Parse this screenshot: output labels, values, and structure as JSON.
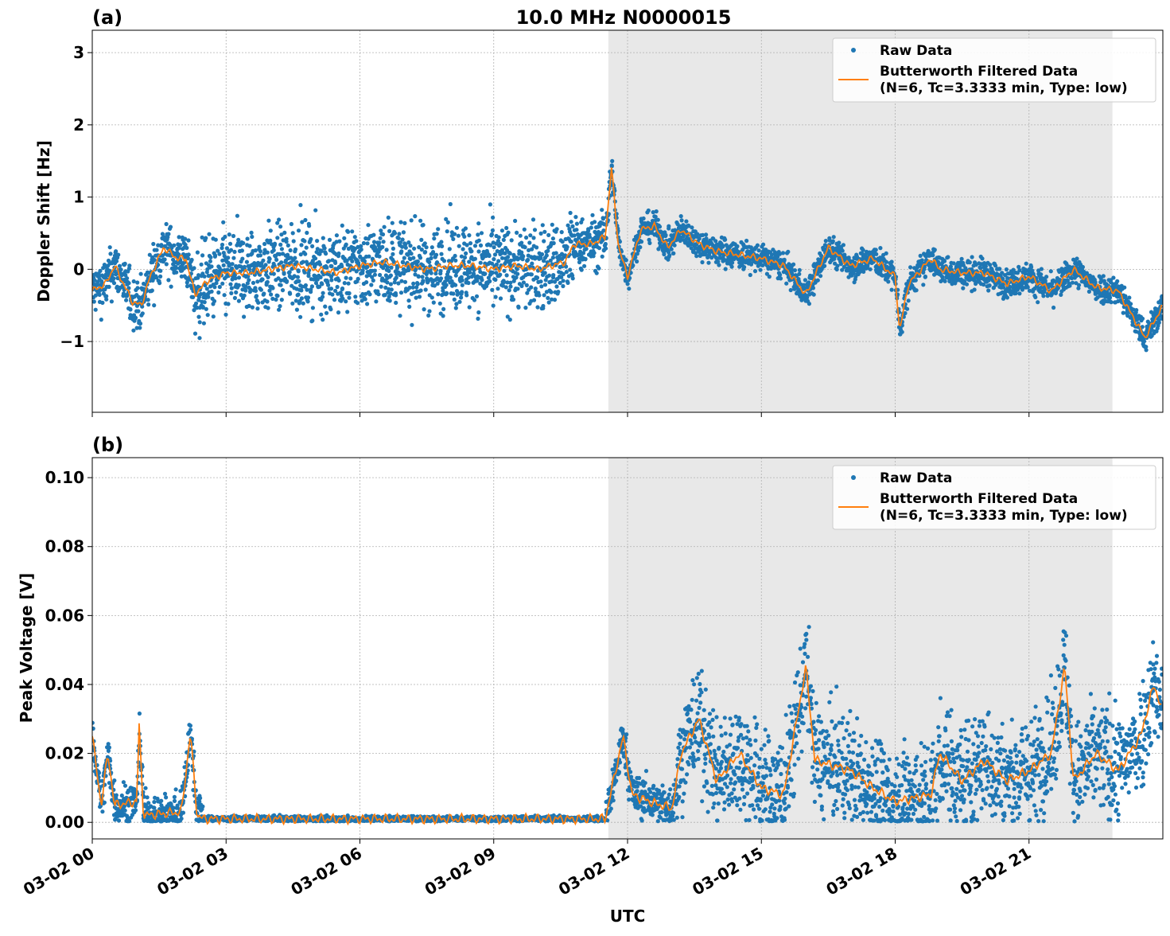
{
  "title": "10.0 MHz N0000015",
  "xlabel": "UTC",
  "x_tick_labels": [
    "03-02 00",
    "03-02 03",
    "03-02 06",
    "03-02 09",
    "03-02 12",
    "03-02 15",
    "03-02 18",
    "03-02 21"
  ],
  "colors": {
    "raw": "#1f77b4",
    "filtered": "#ff7f0e",
    "shade": "#e8e8e8",
    "grid": "#b0b0b0"
  },
  "shaded_interval_hours": [
    11.57,
    22.87
  ],
  "legend": {
    "raw": "Raw Data",
    "filtered_line1": "Butterworth Filtered Data",
    "filtered_line2": "(N=6, Tc=3.3333 min, Type: low)",
    "placement": "upper right"
  },
  "chart_data": [
    {
      "panel_label": "(a)",
      "type": "scatter+line",
      "ylabel": "Doppler Shift [Hz]",
      "xlim_hours": [
        0,
        24
      ],
      "ylim": [
        -1.98,
        3.31
      ],
      "y_ticks": [
        -1,
        0,
        1,
        2,
        3
      ],
      "y_tick_labels": [
        "−1",
        "0",
        "1",
        "2",
        "3"
      ],
      "grid": true,
      "series": [
        {
          "name": "Butterworth Filtered Data",
          "kind": "line",
          "x_hours": [
            0,
            0.3,
            0.5,
            0.7,
            0.9,
            1.1,
            1.3,
            1.6,
            1.9,
            2.1,
            2.3,
            2.6,
            3,
            3.5,
            4,
            4.5,
            5,
            5.5,
            6,
            6.5,
            7,
            7.5,
            8,
            8.5,
            9,
            9.5,
            10,
            10.6,
            10.8,
            11.2,
            11.5,
            11.64,
            11.8,
            12.0,
            12.3,
            12.6,
            12.9,
            13.2,
            13.6,
            14,
            14.5,
            15,
            15.5,
            16,
            16.5,
            17,
            17.5,
            18,
            18.1,
            18.3,
            18.8,
            19,
            19.5,
            20,
            20.5,
            21,
            21.5,
            22,
            22.5,
            23,
            23.6,
            24
          ],
          "y": [
            -0.3,
            -0.2,
            0.05,
            -0.2,
            -0.45,
            -0.5,
            -0.1,
            0.3,
            0.15,
            0.15,
            -0.35,
            -0.15,
            -0.05,
            -0.05,
            0,
            0.05,
            0,
            -0.05,
            0.05,
            0.1,
            0.05,
            0,
            0.05,
            0.05,
            0,
            0.05,
            0,
            0.1,
            0.35,
            0.35,
            0.45,
            1.4,
            0.3,
            -0.1,
            0.55,
            0.6,
            0.3,
            0.55,
            0.35,
            0.25,
            0.2,
            0.15,
            0.05,
            -0.35,
            0.3,
            0.05,
            0.15,
            -0.1,
            -0.85,
            -0.2,
            0.15,
            0,
            -0.05,
            -0.05,
            -0.2,
            -0.1,
            -0.3,
            0,
            -0.25,
            -0.3,
            -0.95,
            -0.5
          ]
        },
        {
          "name": "Raw Data",
          "kind": "scatter",
          "spread_segments": [
            {
              "from_hours": 0,
              "to_hours": 2.3,
              "half_width": 0.45
            },
            {
              "from_hours": 2.3,
              "to_hours": 10.8,
              "half_width": 0.75
            },
            {
              "from_hours": 10.8,
              "to_hours": 11.6,
              "half_width": 0.45
            },
            {
              "from_hours": 11.6,
              "to_hours": 24,
              "half_width": 0.25
            }
          ]
        }
      ]
    },
    {
      "panel_label": "(b)",
      "type": "scatter+line",
      "ylabel": "Peak Voltage [V]",
      "xlim_hours": [
        0,
        24
      ],
      "ylim": [
        -0.0048,
        0.1058
      ],
      "y_ticks": [
        0,
        0.02,
        0.04,
        0.06,
        0.08,
        0.1
      ],
      "y_tick_labels": [
        "0.00",
        "0.02",
        "0.04",
        "0.06",
        "0.08",
        "0.10"
      ],
      "grid": true,
      "series": [
        {
          "name": "Butterworth Filtered Data",
          "kind": "line",
          "x_hours": [
            0,
            0.2,
            0.35,
            0.5,
            1.0,
            1.05,
            1.15,
            2.0,
            2.2,
            2.35,
            2.5,
            11.5,
            11.9,
            12.1,
            12.5,
            13.0,
            13.2,
            13.6,
            14,
            14.5,
            15,
            15.5,
            16.0,
            16.2,
            17,
            17.5,
            18,
            18.8,
            19,
            19.5,
            20,
            20.5,
            21,
            21.5,
            21.8,
            22,
            22.5,
            23,
            23.5,
            23.8,
            24
          ],
          "y": [
            0.025,
            0.005,
            0.02,
            0.005,
            0.006,
            0.028,
            0.002,
            0.003,
            0.026,
            0.002,
            0.001,
            0.001,
            0.025,
            0.008,
            0.006,
            0.004,
            0.02,
            0.03,
            0.012,
            0.02,
            0.01,
            0.008,
            0.045,
            0.018,
            0.015,
            0.01,
            0.006,
            0.008,
            0.02,
            0.012,
            0.018,
            0.012,
            0.015,
            0.02,
            0.045,
            0.012,
            0.02,
            0.015,
            0.025,
            0.04,
            0.032
          ]
        },
        {
          "name": "Raw Data",
          "kind": "scatter",
          "spread_segments": [
            {
              "from_hours": 0,
              "to_hours": 2.5,
              "half_width": 0.008
            },
            {
              "from_hours": 2.5,
              "to_hours": 11.5,
              "half_width": 0.001
            },
            {
              "from_hours": 11.5,
              "to_hours": 13.1,
              "half_width": 0.008
            },
            {
              "from_hours": 13.1,
              "to_hours": 24,
              "half_width": 0.02
            }
          ]
        }
      ]
    }
  ]
}
